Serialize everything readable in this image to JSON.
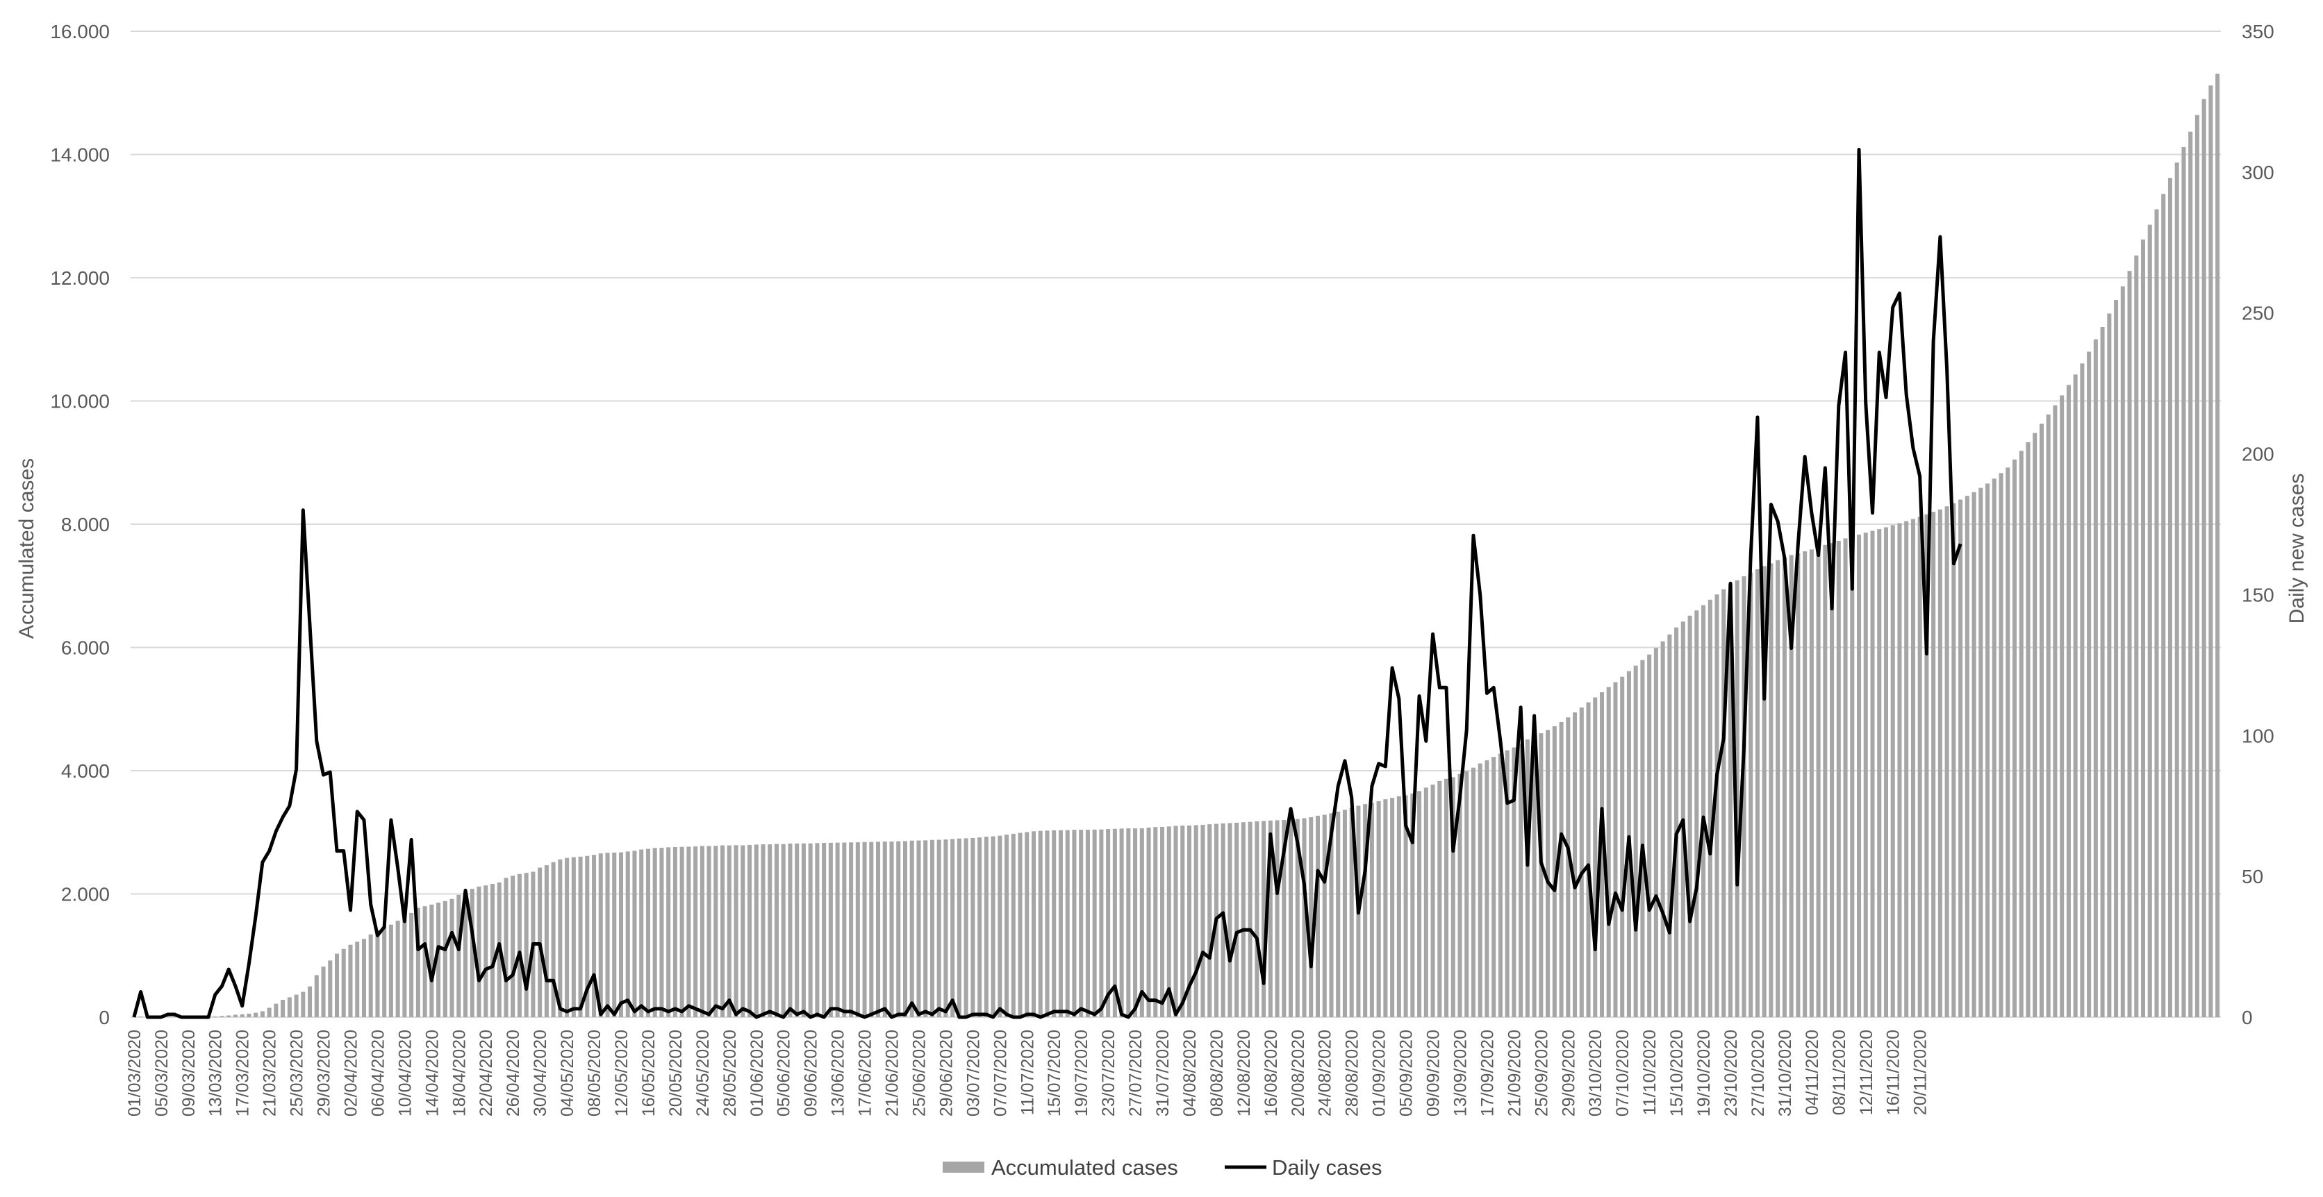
{
  "chart_data": {
    "type": "bar+line",
    "title": "",
    "xlabel": "",
    "ylabel": "Accumulated cases",
    "y2label": "Daily new cases",
    "ylim": [
      0,
      16000
    ],
    "y2lim": [
      0,
      350
    ],
    "yticks": [
      "0",
      "2.000",
      "4.000",
      "6.000",
      "8.000",
      "10.000",
      "12.000",
      "14.000",
      "16.000"
    ],
    "y2ticks": [
      "0",
      "50",
      "100",
      "150",
      "200",
      "250",
      "300",
      "350"
    ],
    "grid": true,
    "legend": "bottom-center",
    "x_start": "01/03/2020",
    "x_end": "20/11/2020",
    "x_tick_labels": [
      "01/03/2020",
      "05/03/2020",
      "09/03/2020",
      "13/03/2020",
      "17/03/2020",
      "21/03/2020",
      "25/03/2020",
      "29/03/2020",
      "02/04/2020",
      "06/04/2020",
      "10/04/2020",
      "14/04/2020",
      "18/04/2020",
      "22/04/2020",
      "26/04/2020",
      "30/04/2020",
      "04/05/2020",
      "08/05/2020",
      "12/05/2020",
      "16/05/2020",
      "20/05/2020",
      "24/05/2020",
      "28/05/2020",
      "01/06/2020",
      "05/06/2020",
      "09/06/2020",
      "13/06/2020",
      "17/06/2020",
      "21/06/2020",
      "25/06/2020",
      "29/06/2020",
      "03/07/2020",
      "07/07/2020",
      "11/07/2020",
      "15/07/2020",
      "19/07/2020",
      "23/07/2020",
      "27/07/2020",
      "31/07/2020",
      "04/08/2020",
      "08/08/2020",
      "12/08/2020",
      "16/08/2020",
      "20/08/2020",
      "24/08/2020",
      "28/08/2020",
      "01/09/2020",
      "05/09/2020",
      "09/09/2020",
      "13/09/2020",
      "17/09/2020",
      "21/09/2020",
      "25/09/2020",
      "29/09/2020",
      "03/10/2020",
      "07/10/2020",
      "11/10/2020",
      "15/10/2020",
      "19/10/2020",
      "23/10/2020",
      "27/10/2020",
      "31/10/2020",
      "04/11/2020",
      "08/11/2020",
      "12/11/2020",
      "16/11/2020",
      "20/11/2020"
    ],
    "series": [
      {
        "name": "Accumulated cases",
        "type": "bar",
        "axis": "left",
        "color": "#a6a6a6",
        "values": [
          0,
          9,
          9,
          9,
          10,
          11,
          11,
          11,
          11,
          11,
          11,
          11,
          11,
          19,
          28,
          40,
          46,
          57,
          72,
          96,
          152,
          218,
          281,
          322,
          366,
          411,
          499,
          682,
          820,
          920,
          1030,
          1107,
          1175,
          1224,
          1271,
          1343,
          1408,
          1461,
          1502,
          1565,
          1633,
          1692,
          1774,
          1801,
          1827,
          1859,
          1884,
          1919,
          1985,
          2013,
          2083,
          2120,
          2138,
          2163,
          2186,
          2260,
          2296,
          2323,
          2342,
          2360,
          2428,
          2466,
          2516,
          2561,
          2585,
          2597,
          2605,
          2617,
          2634,
          2657,
          2667,
          2671,
          2675,
          2689,
          2700,
          2721,
          2731,
          2746,
          2748,
          2757,
          2760,
          2764,
          2767,
          2770,
          2778,
          2777,
          2780,
          2788,
          2787,
          2791,
          2789,
          2795,
          2801,
          2805,
          2805,
          2812,
          2809,
          2818,
          2818,
          2820,
          2820,
          2825,
          2828,
          2830,
          2832,
          2834,
          2837,
          2838,
          2842,
          2843,
          2847,
          2850,
          2850,
          2855,
          2857,
          2865,
          2867,
          2870,
          2876,
          2879,
          2884,
          2892,
          2899,
          2903,
          2908,
          2917,
          2928,
          2935,
          2945,
          2961,
          2976,
          2991,
          3003,
          3017,
          3024,
          3028,
          3033,
          3034,
          3035,
          3041,
          3042,
          3042,
          3044,
          3046,
          3053,
          3056,
          3061,
          3064,
          3064,
          3066,
          3077,
          3085,
          3088,
          3095,
          3104,
          3109,
          3110,
          3116,
          3122,
          3131,
          3138,
          3145,
          3150,
          3155,
          3164,
          3170,
          3179,
          3184,
          3191,
          3196,
          3199,
          3208,
          3215,
          3229,
          3245,
          3269,
          3285,
          3309,
          3335,
          3365,
          3396,
          3431,
          3458,
          3476,
          3506,
          3536,
          3559,
          3586,
          3600,
          3630,
          3670,
          3725,
          3774,
          3832,
          3868,
          3894,
          3946,
          3993,
          4049,
          4118,
          4168,
          4223,
          4277,
          4331,
          4377,
          4435,
          4507,
          4564,
          4608,
          4660,
          4722,
          4790,
          4865,
          4946,
          5026,
          5109,
          5189,
          5273,
          5357,
          5436,
          5524,
          5615,
          5705,
          5795,
          5885,
          5990,
          6099,
          6210,
          6325,
          6420,
          6515,
          6600,
          6685,
          6775,
          6860,
          6945,
          7025,
          7090,
          7155,
          7215,
          7270,
          7320,
          7365,
          7415,
          7455,
          7500,
          7530,
          7560,
          7590,
          7625,
          7665,
          7695,
          7730,
          7770,
          7800,
          7830,
          7862,
          7893,
          7920,
          7950,
          7985,
          8018,
          8050,
          8085,
          8120,
          8160,
          8200,
          8240,
          8290,
          8340,
          8400,
          8460,
          8520,
          8590,
          8660,
          8740,
          8830,
          8920,
          9050,
          9190,
          9330,
          9480,
          9630,
          9780,
          9930,
          10090,
          10260,
          10430,
          10610,
          10800,
          11000,
          11200,
          11420,
          11640,
          11860,
          12110,
          12360,
          12620,
          12860,
          13110,
          13360,
          13620,
          13870,
          14120,
          14370,
          14640,
          14900,
          15120,
          15310
        ]
      },
      {
        "name": "Daily cases",
        "type": "line",
        "axis": "right",
        "color": "#000000",
        "values": [
          0,
          9,
          0,
          0,
          0,
          1,
          1,
          0,
          0,
          0,
          0,
          0,
          8,
          11,
          17,
          11,
          4,
          19,
          36,
          55,
          59,
          66,
          71,
          75,
          88,
          180,
          139,
          98,
          86,
          87,
          59,
          59,
          38,
          73,
          70,
          40,
          29,
          32,
          70,
          53,
          34,
          63,
          24,
          26,
          13,
          25,
          24,
          30,
          24,
          45,
          30,
          13,
          17,
          18,
          26,
          13,
          15,
          23,
          10,
          26,
          26,
          13,
          13,
          3,
          2,
          3,
          3,
          10,
          15,
          1,
          4,
          1,
          5,
          6,
          2,
          4,
          2,
          3,
          3,
          2,
          3,
          2,
          4,
          3,
          2,
          1,
          4,
          3,
          6,
          1,
          3,
          2,
          0,
          1,
          2,
          1,
          0,
          3,
          1,
          2,
          0,
          1,
          0,
          3,
          3,
          2,
          2,
          1,
          0,
          1,
          2,
          3,
          0,
          1,
          1,
          5,
          1,
          2,
          1,
          3,
          2,
          6,
          0,
          0,
          1,
          1,
          1,
          0,
          3,
          1,
          0,
          0,
          1,
          1,
          0,
          1,
          2,
          2,
          2,
          1,
          3,
          2,
          1,
          3,
          8,
          11,
          1,
          0,
          3,
          9,
          6,
          6,
          5,
          10,
          1,
          5,
          11,
          16,
          23,
          21,
          35,
          37,
          20,
          30,
          31,
          31,
          28,
          12,
          65,
          44,
          59,
          74,
          62,
          47,
          18,
          52,
          48,
          65,
          82,
          91,
          78,
          37,
          52,
          82,
          90,
          89,
          124,
          113,
          68,
          62,
          114,
          98,
          136,
          117,
          117,
          59,
          78,
          102,
          171,
          150,
          115,
          117,
          98,
          76,
          77,
          110,
          54,
          107,
          55,
          48,
          45,
          65,
          60,
          46,
          51,
          54,
          24,
          74,
          33,
          44,
          38,
          64,
          31,
          61,
          38,
          43,
          37,
          30,
          65,
          70,
          34,
          46,
          71,
          58,
          86,
          99,
          154,
          47,
          96,
          164,
          213,
          113,
          182,
          176,
          163,
          131,
          168,
          199,
          179,
          164,
          195,
          145,
          217,
          236,
          152,
          308,
          218,
          179,
          236,
          220,
          252,
          257,
          221,
          202,
          192,
          129,
          240,
          277,
          230,
          161,
          168
        ]
      }
    ]
  }
}
